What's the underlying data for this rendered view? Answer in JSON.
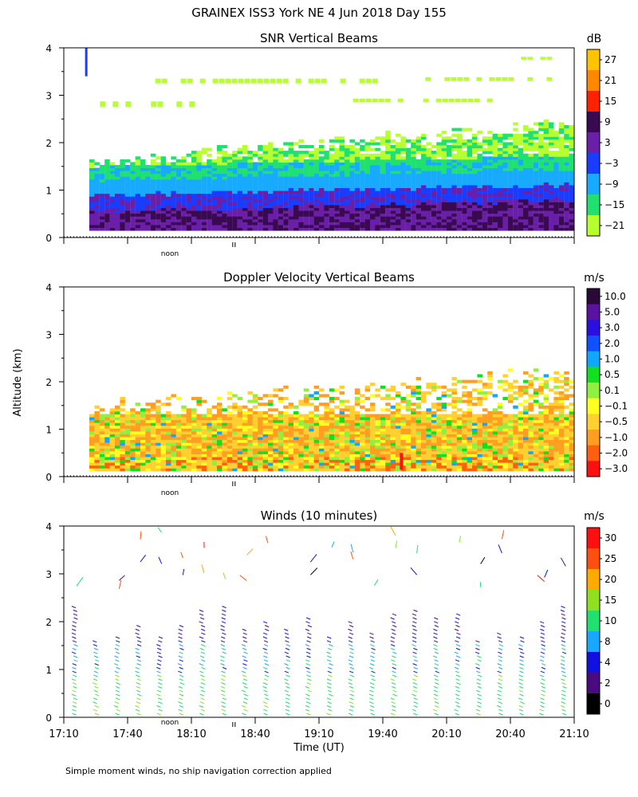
{
  "chart_data": {
    "type": "heatmap",
    "title": "GRAINEX ISS3 York NE    4 Jun 2018 Day 155",
    "ylabel": "Altitude (km)",
    "xlabel": "Time (UT)",
    "footnote": "Simple moment winds, no ship navigation correction applied",
    "x_ticks": [
      "17:10",
      "17:40",
      "18:10",
      "18:40",
      "19:10",
      "19:40",
      "20:10",
      "20:40",
      "21:10"
    ],
    "y_ticks": [
      "0",
      "1",
      "2",
      "3",
      "4"
    ],
    "ylim": [
      0,
      4
    ],
    "noon_label": "noon",
    "noon_time": "18:30",
    "panels": [
      {
        "title": "SNR Vertical Beams",
        "units": "dB",
        "colorbar_labels": [
          "27",
          "21",
          "15",
          "9",
          "3",
          "−3",
          "−9",
          "−15",
          "−21"
        ],
        "colorbar_colors": [
          "#ffc400",
          "#ff8800",
          "#ff2200",
          "#3a0a50",
          "#6a1fa8",
          "#1a3cff",
          "#18aaff",
          "#20e070",
          "#b8ff30"
        ],
        "layers": [
          {
            "range_km": [
              0.15,
              0.55
            ],
            "value": "9 to 15 dB"
          },
          {
            "range_km": [
              0.55,
              0.9
            ],
            "value": "-3 to 3 dB"
          },
          {
            "range_km": [
              0.9,
              1.6
            ],
            "value": "-15 to -9 dB"
          },
          {
            "range_km": [
              1.6,
              2.4
            ],
            "value": "-21 to -15 dB"
          }
        ]
      },
      {
        "title": "Doppler Velocity Vertical Beams",
        "units": "m/s",
        "colorbar_labels": [
          "10.0",
          "5.0",
          "3.0",
          "2.0",
          "1.0",
          "0.5",
          "0.1",
          "−0.1",
          "−0.5",
          "−1.0",
          "−2.0",
          "−3.0"
        ],
        "colorbar_colors": [
          "#2a0838",
          "#5a12a0",
          "#2a10e0",
          "#1050ff",
          "#10a8ff",
          "#10e020",
          "#90f040",
          "#ffff20",
          "#ffd030",
          "#ff9e20",
          "#ff6010",
          "#ff1010"
        ],
        "dominant_range": "-1.0 to -0.1 m/s below 1.4 km"
      },
      {
        "title": "Winds (10 minutes)",
        "units": "m/s",
        "colorbar_labels": [
          "30",
          "25",
          "20",
          "15",
          "10",
          "8",
          "4",
          "2",
          "0"
        ],
        "colorbar_colors": [
          "#ff1010",
          "#ff5010",
          "#ffaa00",
          "#90e020",
          "#20e070",
          "#18a8ff",
          "#1010e0",
          "#4a0a80",
          "#000000"
        ],
        "profile_interval_min": 10,
        "dominant_speed": "10 to 15 m/s"
      }
    ]
  }
}
